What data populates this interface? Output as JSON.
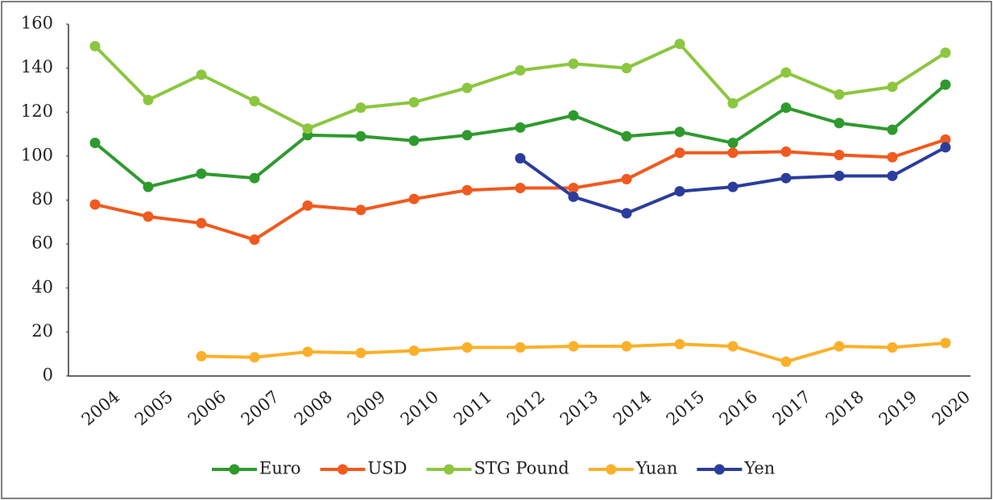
{
  "chart_data": {
    "type": "line",
    "categories": [
      "2004",
      "2005",
      "2006",
      "2007",
      "2008",
      "2009",
      "2010",
      "2011",
      "2012",
      "2013",
      "2014",
      "2015",
      "2016",
      "2017",
      "2018",
      "2019",
      "2020"
    ],
    "series": [
      {
        "name": "Euro",
        "color": "#2e9a2e",
        "values": [
          106,
          86,
          92,
          90,
          109.5,
          109,
          107,
          109.5,
          113,
          118.5,
          109,
          111,
          106,
          122,
          115,
          112,
          132.5
        ]
      },
      {
        "name": "USD",
        "color": "#f05a1e",
        "values": [
          78,
          72.5,
          69.5,
          62,
          77.5,
          75.5,
          80.5,
          84.5,
          85.5,
          85.5,
          89.5,
          101.5,
          101.5,
          102,
          100.5,
          99.5,
          107.5
        ]
      },
      {
        "name": "STG Pound",
        "color": "#8cc63f",
        "values": [
          150,
          125.5,
          137,
          125,
          112.5,
          122,
          124.5,
          131,
          139,
          142,
          140,
          151,
          124,
          138,
          128,
          131.5,
          147
        ]
      },
      {
        "name": "Yuan",
        "color": "#fbb02a",
        "values": [
          null,
          null,
          9,
          8.5,
          11,
          10.5,
          11.5,
          13,
          13,
          13.5,
          13.5,
          14.5,
          13.5,
          6.5,
          13.5,
          13,
          15
        ]
      },
      {
        "name": "Yen",
        "color": "#2b3d9c",
        "values": [
          null,
          null,
          null,
          null,
          null,
          null,
          null,
          null,
          99,
          81.5,
          74,
          84,
          86,
          90,
          91,
          91,
          104
        ]
      }
    ],
    "ylim": [
      0,
      160
    ],
    "yticks": [
      0,
      20,
      40,
      60,
      80,
      100,
      120,
      140,
      160
    ],
    "grid": false
  }
}
